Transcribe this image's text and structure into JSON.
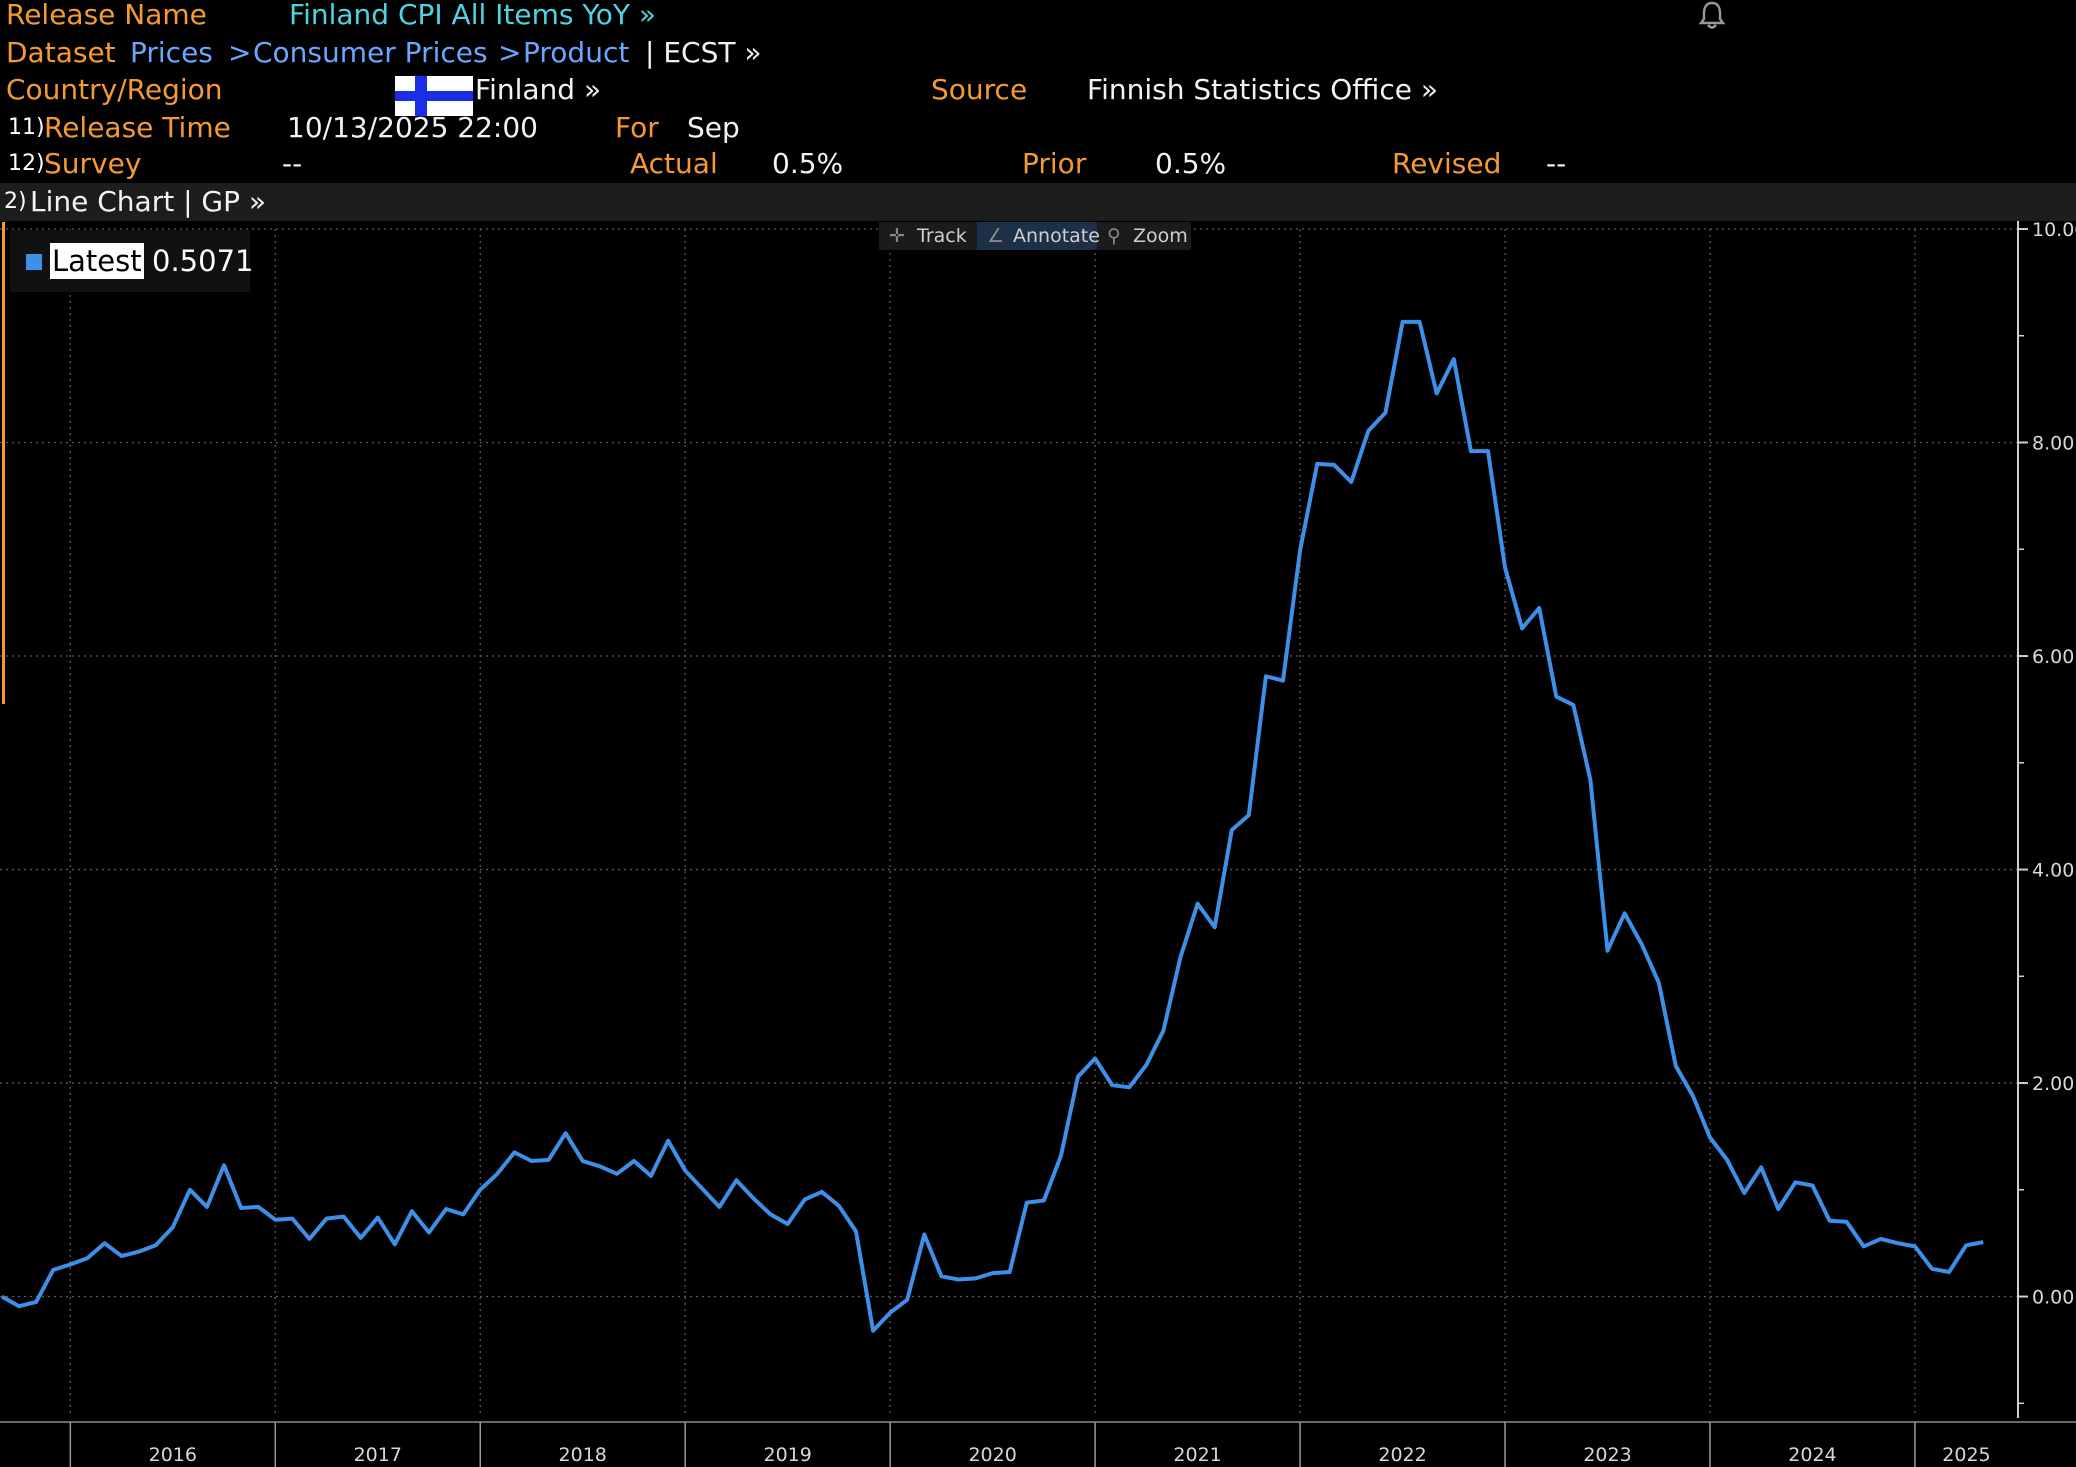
{
  "header": {
    "release_name_label": "Release Name",
    "release_name_value": "Finland CPI All Items YoY »",
    "dataset_label": "Dataset",
    "breadcrumb": [
      "Prices",
      "Consumer Prices",
      "Product"
    ],
    "breadcrumb_sep": ">",
    "dataset_suffix": "| ECST »",
    "country_label": "Country/Region",
    "country_value": "Finland »",
    "source_label": "Source",
    "source_value": "Finnish Statistics Office »",
    "row11_num": "11)",
    "release_time_label": "Release Time",
    "release_time_value": "10/13/2025 22:00",
    "for_label": "For",
    "for_value": "Sep",
    "row12_num": "12)",
    "survey_label": "Survey",
    "survey_value": "--",
    "actual_label": "Actual",
    "actual_value": "0.5%",
    "prior_label": "Prior",
    "prior_value": "0.5%",
    "revised_label": "Revised",
    "revised_value": "--"
  },
  "chart_bar": {
    "num": "2)",
    "label": "Line Chart | GP »"
  },
  "toolbar": {
    "track": "Track",
    "annotate": "Annotate",
    "zoom": "Zoom"
  },
  "legend": {
    "label": "Latest",
    "value": "0.5071",
    "color": "#3d8fe8"
  },
  "colors": {
    "line": "#3d8fe8",
    "label_orange": "#f39a32",
    "link_blue": "#6aa6ff",
    "title_cyan": "#4fd3e0"
  },
  "chart_data": {
    "type": "line",
    "title": "",
    "xlabel": "",
    "ylabel": "",
    "ylim": [
      -1.1,
      10.0
    ],
    "yticks": [
      "10.00",
      "8.00",
      "6.00",
      "4.00",
      "2.00",
      "0.00"
    ],
    "ytick_values": [
      10,
      8,
      6,
      4,
      2,
      0
    ],
    "xticks": [
      "2016",
      "2017",
      "2018",
      "2019",
      "2020",
      "2021",
      "2022",
      "2023",
      "2024",
      "2025"
    ],
    "grid": true,
    "legend_position": "top-left",
    "start": "2015-09",
    "frequency": "monthly",
    "series": [
      {
        "name": "Latest",
        "values": [
          0.0,
          -0.09,
          -0.05,
          0.25,
          0.3,
          0.36,
          0.5,
          0.38,
          0.42,
          0.48,
          0.65,
          1.0,
          0.84,
          1.23,
          0.83,
          0.84,
          0.72,
          0.73,
          0.54,
          0.73,
          0.75,
          0.55,
          0.74,
          0.49,
          0.8,
          0.6,
          0.82,
          0.77,
          1.0,
          1.15,
          1.35,
          1.27,
          1.28,
          1.53,
          1.27,
          1.22,
          1.15,
          1.27,
          1.13,
          1.46,
          1.18,
          1.01,
          0.84,
          1.09,
          0.92,
          0.77,
          0.68,
          0.91,
          0.98,
          0.85,
          0.61,
          -0.32,
          -0.15,
          -0.03,
          0.58,
          0.19,
          0.16,
          0.17,
          0.22,
          0.23,
          0.88,
          0.9,
          1.32,
          2.06,
          2.23,
          1.98,
          1.96,
          2.17,
          2.49,
          3.18,
          3.68,
          3.46,
          4.37,
          4.51,
          5.81,
          5.77,
          6.99,
          7.8,
          7.79,
          7.63,
          8.11,
          8.28,
          9.13,
          9.13,
          8.46,
          8.78,
          7.92,
          7.92,
          6.83,
          6.26,
          6.45,
          5.62,
          5.54,
          4.84,
          3.24,
          3.59,
          3.3,
          2.94,
          2.16,
          1.88,
          1.49,
          1.28,
          0.97,
          1.21,
          0.82,
          1.07,
          1.04,
          0.71,
          0.7,
          0.47,
          0.54,
          0.5,
          0.47,
          0.26,
          0.23,
          0.48,
          0.51
        ]
      }
    ]
  }
}
